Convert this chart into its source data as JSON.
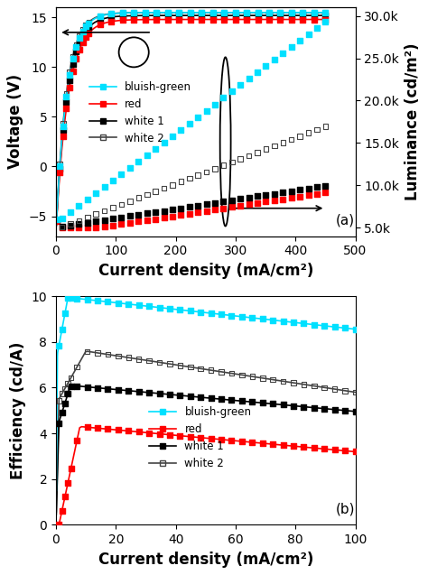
{
  "panel_a": {
    "title": "(a)",
    "xlabel": "Current density (mA/cm²)",
    "ylabel_left": "Voltage (V)",
    "ylabel_right": "Luminance (cd/m²)",
    "xlim": [
      0,
      500
    ],
    "ylim_left": [
      -7,
      16
    ],
    "ylim_right": [
      4000,
      31000
    ],
    "yticks_left": [
      -5,
      0,
      5,
      10,
      15
    ],
    "yticks_right": [
      5000,
      10000,
      15000,
      20000,
      25000,
      30000
    ],
    "ytick_labels_right": [
      "5.0k",
      "10.0k",
      "15.0k",
      "20.0k",
      "25.0k",
      "30.0k"
    ],
    "xticks": [
      0,
      100,
      200,
      300,
      400,
      500
    ],
    "colors": {
      "bluish_green": "#00e0ff",
      "red": "#ff0000",
      "white1": "#000000",
      "white2": "#444444"
    }
  },
  "panel_b": {
    "title": "(b)",
    "xlabel": "Current density (mA/cm²)",
    "ylabel": "Efficiency (cd/A)",
    "xlim": [
      0,
      100
    ],
    "ylim": [
      0,
      10
    ],
    "yticks": [
      0,
      2,
      4,
      6,
      8,
      10
    ],
    "xticks": [
      0,
      20,
      40,
      60,
      80,
      100
    ],
    "colors": {
      "bluish_green": "#00e0ff",
      "red": "#ff0000",
      "white1": "#000000",
      "white2": "#444444"
    }
  },
  "bg_color": "#ffffff",
  "label_font_size": 12,
  "tick_font_size": 10
}
